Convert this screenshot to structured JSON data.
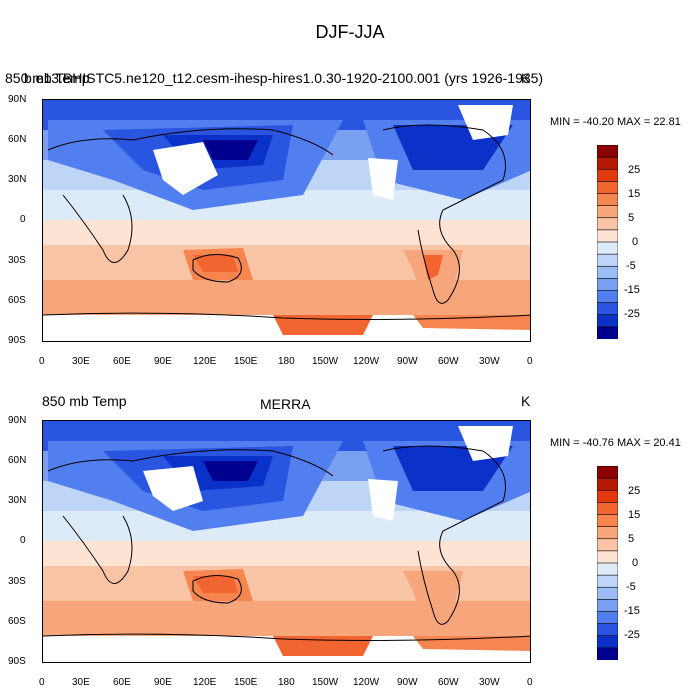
{
  "figure": {
    "title": "DJF-JJA"
  },
  "panels": [
    {
      "id": "model",
      "left_title": "850 mb Temp",
      "center_title": "b.e13.BHISTC5.ne120_t12.cesm-ihesp-hires1.0.30-1920-2100.001 (yrs 1926-1935)",
      "units": "K",
      "min_max": "MIN = -40.20 MAX =  22.81"
    },
    {
      "id": "merra",
      "left_title": "850 mb Temp",
      "center_title": "MERRA",
      "units": "K",
      "min_max": "MIN = -40.76 MAX =  20.41"
    }
  ],
  "axes": {
    "lat_labels": [
      "90N",
      "60N",
      "30N",
      "0",
      "30S",
      "60S",
      "90S"
    ],
    "lon_labels": [
      "0",
      "30E",
      "60E",
      "90E",
      "120E",
      "150E",
      "180",
      "150W",
      "120W",
      "90W",
      "60W",
      "30W",
      "0"
    ]
  },
  "colorbar": {
    "labels": [
      "25",
      "15",
      "5",
      "-5",
      "-15",
      "-25"
    ],
    "zero_label": "0",
    "colors": [
      "#8b0000",
      "#b41a00",
      "#e03a10",
      "#f26530",
      "#f6854f",
      "#f7a67c",
      "#f9c3a5",
      "#fde3d4",
      "#ddeaf8",
      "#bfd5f7",
      "#9cbcf4",
      "#789ff0",
      "#527ff0",
      "#2a55e0",
      "#0a32c8",
      "#00008f"
    ]
  },
  "chart_data": {
    "type": "heatmap",
    "title": "DJF-JJA",
    "variable": "850 mb Temp",
    "units": "K",
    "x_axis": "longitude",
    "y_axis": "latitude",
    "xlim": [
      0,
      360
    ],
    "ylim": [
      -90,
      90
    ],
    "contour_levels": [
      -35,
      -30,
      -25,
      -20,
      -15,
      -10,
      -5,
      0,
      5,
      10,
      15,
      20,
      25,
      30,
      35
    ],
    "panels": [
      {
        "name": "b.e13.BHISTC5.ne120_t12.cesm-ihesp-hires1.0.30-1920-2100.001 (yrs 1926-1935)",
        "min": -40.2,
        "max": 22.81
      },
      {
        "name": "MERRA",
        "min": -40.76,
        "max": 20.41
      }
    ]
  }
}
